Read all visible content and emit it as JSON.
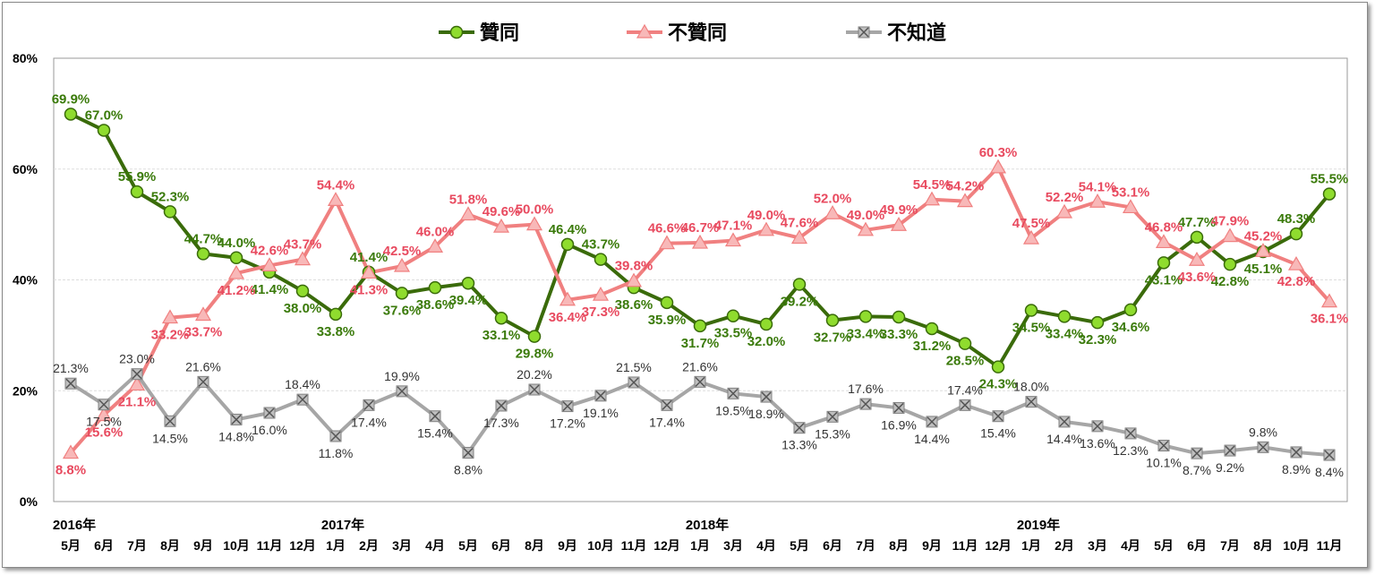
{
  "chart_data": {
    "type": "line",
    "years": [
      {
        "label": "2016年",
        "at": 0
      },
      {
        "label": "2017年",
        "at": 8
      },
      {
        "label": "2018年",
        "at": 19
      },
      {
        "label": "2019年",
        "at": 29
      }
    ],
    "categories": [
      "5月",
      "6月",
      "7月",
      "8月",
      "9月",
      "10月",
      "11月",
      "12月",
      "1月",
      "2月",
      "3月",
      "4月",
      "5月",
      "6月",
      "8月",
      "9月",
      "10月",
      "11月",
      "12月",
      "1月",
      "3月",
      "4月",
      "5月",
      "6月",
      "7月",
      "8月",
      "9月",
      "11月",
      "12月",
      "1月",
      "2月",
      "3月",
      "4月",
      "5月",
      "6月",
      "7月",
      "8月",
      "10月",
      "11月"
    ],
    "ylim": [
      0,
      80
    ],
    "yticks": [
      "0%",
      "20%",
      "40%",
      "60%",
      "80%"
    ],
    "grid": true,
    "legend": "top",
    "series": [
      {
        "name": "贊同",
        "color": "#3a6b0a",
        "marker": "circle",
        "marker_color": "#8fdc2e",
        "values": [
          69.9,
          67.0,
          55.9,
          52.3,
          44.7,
          44.0,
          41.4,
          38.0,
          33.8,
          41.4,
          37.6,
          38.6,
          39.4,
          33.1,
          29.8,
          46.4,
          43.7,
          38.6,
          35.9,
          31.7,
          33.5,
          32.0,
          39.2,
          32.7,
          33.4,
          33.3,
          31.2,
          28.5,
          24.3,
          34.5,
          33.4,
          32.3,
          34.6,
          43.1,
          47.7,
          42.8,
          45.1,
          48.3,
          55.5
        ]
      },
      {
        "name": "不贊同",
        "color": "#f08080",
        "marker": "triangle",
        "marker_color": "#f8b8b8",
        "values": [
          8.8,
          15.6,
          21.1,
          33.2,
          33.7,
          41.2,
          42.6,
          43.7,
          54.4,
          41.3,
          42.5,
          46.0,
          51.8,
          49.6,
          50.0,
          36.4,
          37.3,
          39.8,
          46.6,
          46.7,
          47.1,
          49.0,
          47.6,
          52.0,
          49.0,
          49.9,
          54.5,
          54.2,
          60.3,
          47.5,
          52.2,
          54.1,
          53.1,
          46.8,
          43.6,
          47.9,
          45.2,
          42.8,
          36.1
        ]
      },
      {
        "name": "不知道",
        "color": "#a6a6a6",
        "marker": "x-square",
        "marker_color": "#808080",
        "values": [
          21.3,
          17.5,
          23.0,
          14.5,
          21.6,
          14.8,
          16.0,
          18.4,
          11.8,
          17.4,
          19.9,
          15.4,
          8.8,
          17.3,
          20.2,
          17.2,
          19.1,
          21.5,
          17.4,
          21.6,
          19.5,
          18.9,
          13.3,
          15.3,
          17.6,
          16.9,
          14.4,
          17.4,
          15.4,
          18.0,
          14.4,
          13.6,
          12.3,
          10.1,
          8.7,
          9.2,
          9.8,
          8.9,
          8.4
        ]
      }
    ],
    "label_colors": [
      "#3a7a0a",
      "#e84a5f",
      "#333333"
    ]
  }
}
